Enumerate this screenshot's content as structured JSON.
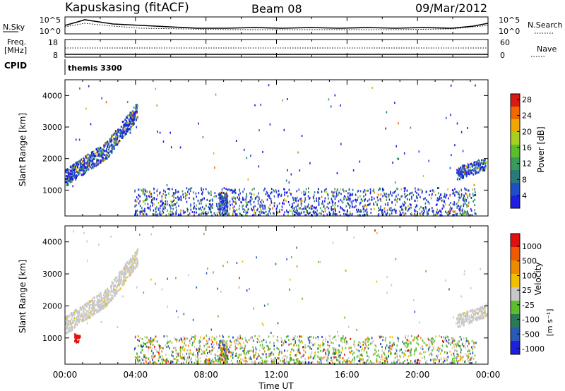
{
  "header": {
    "station": "Kapuskasing (fitACF)",
    "beam": "Beam 08",
    "date": "09/Mar/2012"
  },
  "noise_panel": {
    "left_label": "N.Sky",
    "right_label": "N.Search",
    "left_ticks": [
      "10^5",
      "10^0"
    ],
    "right_ticks": [
      "10^5",
      "10^0"
    ]
  },
  "freq_panel": {
    "left_label_1": "Freq.",
    "left_label_2": "[MHz]",
    "right_label": "Nave",
    "left_ticks": [
      "18",
      "8"
    ],
    "right_ticks": [
      "60",
      "0"
    ]
  },
  "cpid_panel": {
    "label": "CPID",
    "program": "themis 3300"
  },
  "chart_data": [
    {
      "type": "heatmap",
      "name": "power",
      "ylabel": "Slant Range [km]",
      "yticks": [
        1000,
        2000,
        3000,
        4000
      ],
      "ylim": [
        180,
        4500
      ],
      "xticks": [
        "00:00",
        "04:00",
        "08:00",
        "12:00",
        "16:00",
        "20:00",
        "00:00"
      ],
      "xlim": [
        0,
        24
      ],
      "colorbar_label": "Power [dB]",
      "colorbar_ticks": [
        "4",
        "8",
        "12",
        "16",
        "20",
        "24",
        "28"
      ],
      "colorbar_colors": [
        "#1f1fe0",
        "#1f4fc8",
        "#2a7a78",
        "#3a9a5a",
        "#5bbf2a",
        "#a8cf20",
        "#f0a800",
        "#ee6a00",
        "#d81a10"
      ]
    },
    {
      "type": "heatmap",
      "name": "velocity",
      "ylabel": "Slant Range [km]",
      "yticks": [
        1000,
        2000,
        3000,
        4000
      ],
      "ylim": [
        180,
        4500
      ],
      "xticks": [
        "00:00",
        "04:00",
        "08:00",
        "12:00",
        "16:00",
        "20:00",
        "00:00"
      ],
      "xlim": [
        0,
        24
      ],
      "xlabel": "Time UT",
      "colorbar_label": "Velocity",
      "colorbar_unit": "[m s⁻¹]",
      "colorbar_ticks": [
        "1000",
        "500",
        "100",
        "25",
        "-25",
        "-100",
        "-500",
        "-1000"
      ],
      "colorbar_colors": [
        "#1f1fe0",
        "#2a5ab8",
        "#2a7a58",
        "#5bbf2a",
        "#c8c8c8",
        "#f0c000",
        "#ee8a00",
        "#ee5a00",
        "#e01010"
      ]
    }
  ]
}
